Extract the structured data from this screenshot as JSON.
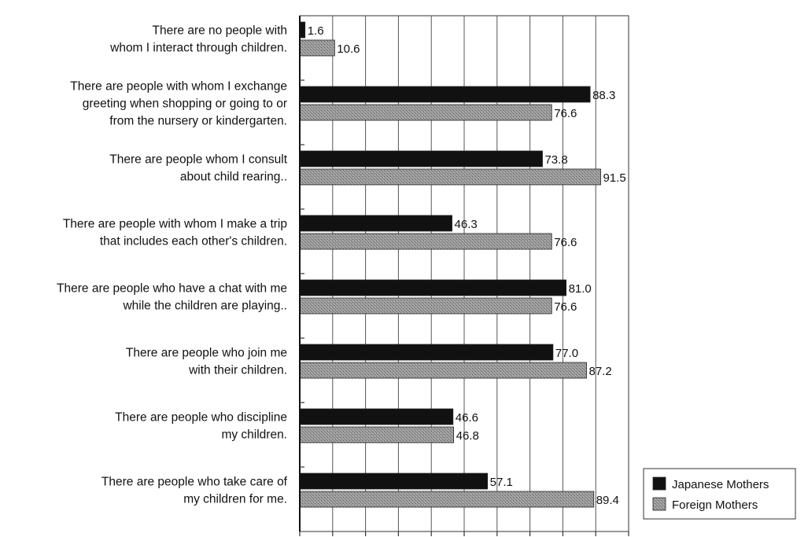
{
  "chart_data": {
    "type": "bar",
    "orientation": "horizontal",
    "categories": [
      [
        "There are no people with",
        "whom I interact through children."
      ],
      [
        "There are people with whom I exchange",
        "greeting when shopping or going to or",
        "from the nursery or kindergarten."
      ],
      [
        "There are people whom I consult",
        "about child rearing.."
      ],
      [
        "There are people with whom I make a trip",
        "that includes each other's children."
      ],
      [
        "There are people who have a chat with me",
        "while the children are playing.."
      ],
      [
        "There are people who join me",
        "with their children."
      ],
      [
        "There are people who discipline",
        "my children."
      ],
      [
        "There are people who take care of",
        "my children for me."
      ]
    ],
    "series": [
      {
        "name": "Japanese Mothers",
        "color": "#111111",
        "values": [
          1.6,
          88.3,
          73.8,
          46.3,
          81.0,
          77.0,
          46.6,
          57.1
        ],
        "labels": [
          "1.6",
          "88.3",
          "73.8",
          "46.3",
          "81.0",
          "77.0",
          "46.6",
          "57.1"
        ]
      },
      {
        "name": "Foreign Mothers",
        "color": "#8c8c8c",
        "values": [
          10.6,
          76.6,
          91.5,
          76.6,
          76.6,
          87.2,
          46.8,
          89.4
        ],
        "labels": [
          "10.6",
          "76.6",
          "91.5",
          "76.6",
          "76.6",
          "87.2",
          "46.8",
          "89.4"
        ]
      }
    ],
    "xlim": [
      0,
      100
    ],
    "xticks": [
      "0",
      "10",
      "20",
      "30",
      "40",
      "50",
      "60",
      "70",
      "80",
      "90",
      "100"
    ],
    "grid": "vertical",
    "legend": "bottom-right",
    "title": "",
    "xlabel": "",
    "ylabel": ""
  }
}
